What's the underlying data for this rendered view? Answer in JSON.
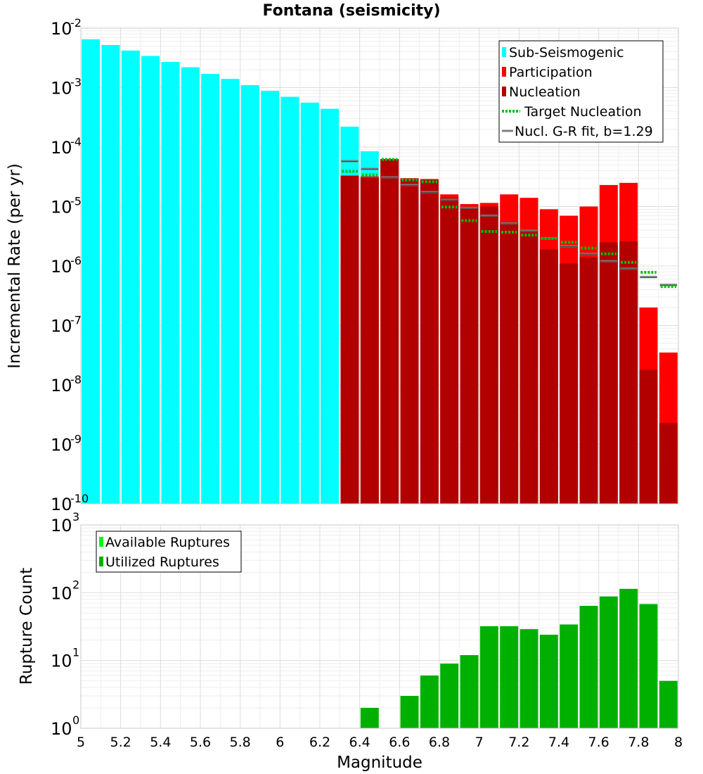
{
  "chart_data": [
    {
      "type": "bar",
      "title": "Fontana (seismicity)",
      "xlabel": "Magnitude",
      "ylabel": "Incremental Rate (per yr)",
      "yscale": "log",
      "xlim": [
        5,
        8
      ],
      "ylim": [
        1e-10,
        0.01
      ],
      "bin_width": 0.1,
      "x_ticks": [
        "5",
        "5.2",
        "5.4",
        "5.6",
        "5.8",
        "6",
        "6.2",
        "6.4",
        "6.6",
        "6.8",
        "7",
        "7.2",
        "7.4",
        "7.6",
        "7.8",
        "8"
      ],
      "y_ticks": [
        {
          "base": "10",
          "exp": "-2"
        },
        {
          "base": "10",
          "exp": "-3"
        },
        {
          "base": "10",
          "exp": "-4"
        },
        {
          "base": "10",
          "exp": "-5"
        },
        {
          "base": "10",
          "exp": "-6"
        },
        {
          "base": "10",
          "exp": "-7"
        },
        {
          "base": "10",
          "exp": "-8"
        },
        {
          "base": "10",
          "exp": "-9"
        },
        {
          "base": "10",
          "exp": "-10"
        }
      ],
      "legend": {
        "position": "top-right",
        "entries": [
          {
            "label": "Sub-Seismogenic",
            "color": "#00ffff",
            "style": "box"
          },
          {
            "label": "Participation",
            "color": "#ff0000",
            "style": "box"
          },
          {
            "label": "Nucleation",
            "color": "#b20000",
            "style": "box"
          },
          {
            "label": "Target Nucleation",
            "color": "#00c000",
            "style": "dotted-line"
          },
          {
            "label": "Nucl. G-R fit, b=1.29",
            "color": "#808080",
            "style": "line"
          }
        ]
      },
      "series": [
        {
          "name": "Sub-Seismogenic",
          "color": "#00ffff",
          "x": [
            5.05,
            5.15,
            5.25,
            5.35,
            5.45,
            5.55,
            5.65,
            5.75,
            5.85,
            5.95,
            6.05,
            6.15,
            6.25,
            6.35,
            6.45
          ],
          "values": [
            0.0065,
            0.0052,
            0.0042,
            0.0034,
            0.0027,
            0.0022,
            0.0017,
            0.0014,
            0.0011,
            0.00088,
            0.0007,
            0.00056,
            0.00044,
            0.00022,
            8.5e-05
          ]
        },
        {
          "name": "Participation",
          "color": "#ff0000",
          "x": [
            6.35,
            6.45,
            6.55,
            6.65,
            6.75,
            6.85,
            6.95,
            7.05,
            7.15,
            7.25,
            7.35,
            7.45,
            7.55,
            7.65,
            7.75,
            7.85,
            7.95
          ],
          "values": [
            3.3e-05,
            3.2e-05,
            6.3e-05,
            3e-05,
            2.9e-05,
            1.6e-05,
            1.1e-05,
            1.15e-05,
            1.6e-05,
            1.4e-05,
            9e-06,
            7e-06,
            1e-05,
            2.3e-05,
            2.5e-05,
            2e-07,
            3.5e-08
          ]
        },
        {
          "name": "Nucleation",
          "color": "#b20000",
          "x": [
            6.35,
            6.45,
            6.55,
            6.65,
            6.75,
            6.85,
            6.95,
            7.05,
            7.15,
            7.25,
            7.35,
            7.45,
            7.55,
            7.65,
            7.75,
            7.85,
            7.95
          ],
          "values": [
            3.3e-05,
            3e-05,
            6.2e-05,
            2.9e-05,
            2.8e-05,
            1.4e-05,
            1e-05,
            1e-05,
            5.5e-06,
            4e-06,
            1.9e-06,
            1.1e-06,
            1.4e-06,
            2.5e-06,
            2.6e-06,
            1.8e-08,
            2.3e-09
          ]
        },
        {
          "name": "Target Nucleation",
          "color": "#00c000",
          "style": "dotted",
          "x": [
            6.35,
            6.45,
            6.55,
            6.65,
            6.75,
            6.85,
            6.95,
            7.05,
            7.15,
            7.25,
            7.35,
            7.45,
            7.55,
            7.65,
            7.75,
            7.85,
            7.95
          ],
          "values": [
            3.9e-05,
            3.4e-05,
            6.2e-05,
            2.8e-05,
            2.6e-05,
            9.8e-06,
            5.8e-06,
            3.8e-06,
            3.7e-06,
            3.3e-06,
            2.9e-06,
            2.5e-06,
            2e-06,
            1.6e-06,
            1.15e-06,
            7.8e-07,
            4.5e-07
          ]
        },
        {
          "name": "Nucl. G-R fit, b=1.29",
          "color": "#808080",
          "style": "solid",
          "x": [
            6.35,
            6.45,
            6.55,
            6.65,
            6.75,
            6.85,
            6.95,
            7.05,
            7.15,
            7.25,
            7.35,
            7.45,
            7.55,
            7.65,
            7.75,
            7.85,
            7.95
          ],
          "values": [
            5.8e-05,
            4.3e-05,
            3.1e-05,
            2.3e-05,
            1.75e-05,
            1.3e-05,
            9.5e-06,
            7e-06,
            5.2e-06,
            3.9e-06,
            2.9e-06,
            2.15e-06,
            1.6e-06,
            1.2e-06,
            9e-07,
            6.5e-07,
            4.8e-07
          ]
        }
      ]
    },
    {
      "type": "bar",
      "xlabel": "Magnitude",
      "ylabel": "Rupture Count",
      "yscale": "log",
      "xlim": [
        5,
        8
      ],
      "ylim": [
        1,
        1000
      ],
      "bin_width": 0.1,
      "x_ticks": [
        "5",
        "5.2",
        "5.4",
        "5.6",
        "5.8",
        "6",
        "6.2",
        "6.4",
        "6.6",
        "6.8",
        "7",
        "7.2",
        "7.4",
        "7.6",
        "7.8",
        "8"
      ],
      "y_ticks": [
        {
          "base": "10",
          "exp": "3"
        },
        {
          "base": "10",
          "exp": "2"
        },
        {
          "base": "10",
          "exp": "1"
        },
        {
          "base": "10",
          "exp": "0"
        }
      ],
      "legend": {
        "position": "top-left",
        "entries": [
          {
            "label": "Available Ruptures",
            "color": "#00ff00",
            "style": "box"
          },
          {
            "label": "Utilized Ruptures",
            "color": "#00b000",
            "style": "box"
          }
        ]
      },
      "series": [
        {
          "name": "Utilized Ruptures",
          "color": "#00b000",
          "x": [
            6.45,
            6.65,
            6.75,
            6.85,
            6.95,
            7.05,
            7.15,
            7.25,
            7.35,
            7.45,
            7.55,
            7.65,
            7.75,
            7.85,
            7.95
          ],
          "values": [
            2,
            3,
            6,
            9,
            12,
            32,
            32,
            29,
            24,
            34,
            64,
            88,
            114,
            68,
            5
          ]
        }
      ]
    }
  ]
}
